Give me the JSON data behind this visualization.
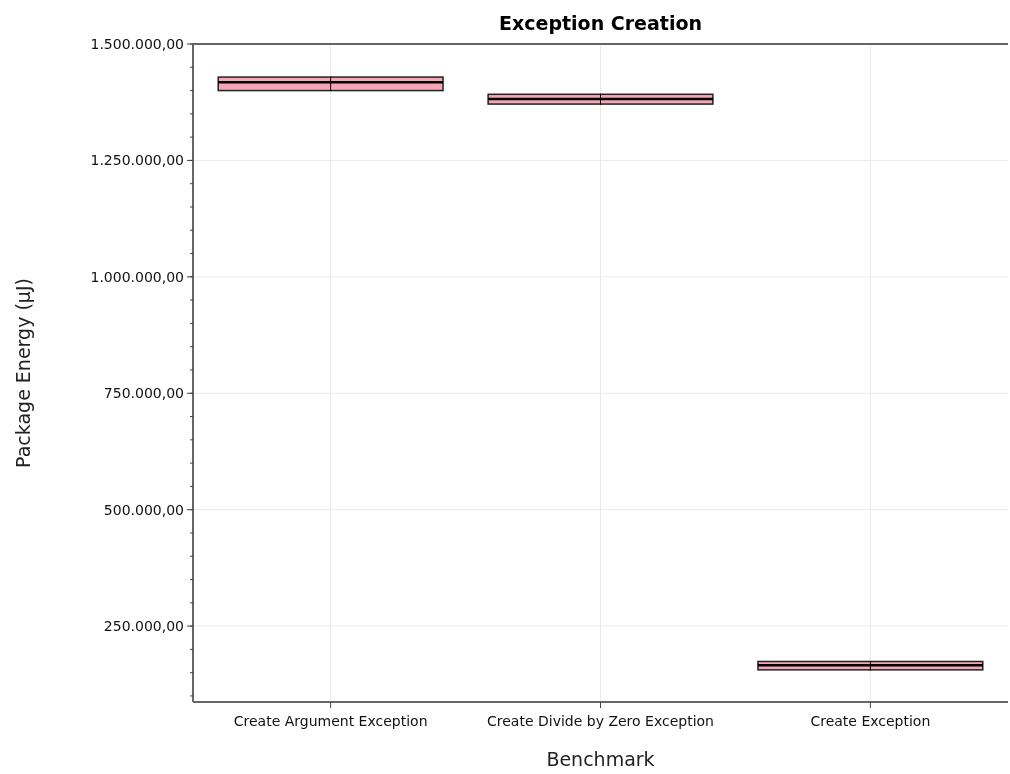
{
  "chart_data": {
    "type": "box",
    "title": "Exception Creation",
    "xlabel": "Benchmark",
    "ylabel": "Package Energy (µJ)",
    "categories": [
      "Create Argument Exception",
      "Create Divide by Zero Exception",
      "Create Exception"
    ],
    "color": "#f4a6b4",
    "boxes": [
      {
        "low": 1399000,
        "q1": 1400000,
        "median": 1418000,
        "q3": 1429000,
        "high": 1430000
      },
      {
        "low": 1370000,
        "q1": 1371000,
        "median": 1382000,
        "q3": 1392000,
        "high": 1393000
      },
      {
        "low": 155000,
        "q1": 156000,
        "median": 166000,
        "q3": 174000,
        "high": 175000
      }
    ],
    "ylim": [
      87000,
      1500000
    ],
    "yticks": [
      {
        "value": 250000,
        "label": "250.000,00"
      },
      {
        "value": 500000,
        "label": "500.000,00"
      },
      {
        "value": 750000,
        "label": "750.000,00"
      },
      {
        "value": 1000000,
        "label": "1.000.000,00"
      },
      {
        "value": 1250000,
        "label": "1.250.000,00"
      },
      {
        "value": 1500000,
        "label": "1.500.000,00"
      }
    ],
    "grid": true
  }
}
